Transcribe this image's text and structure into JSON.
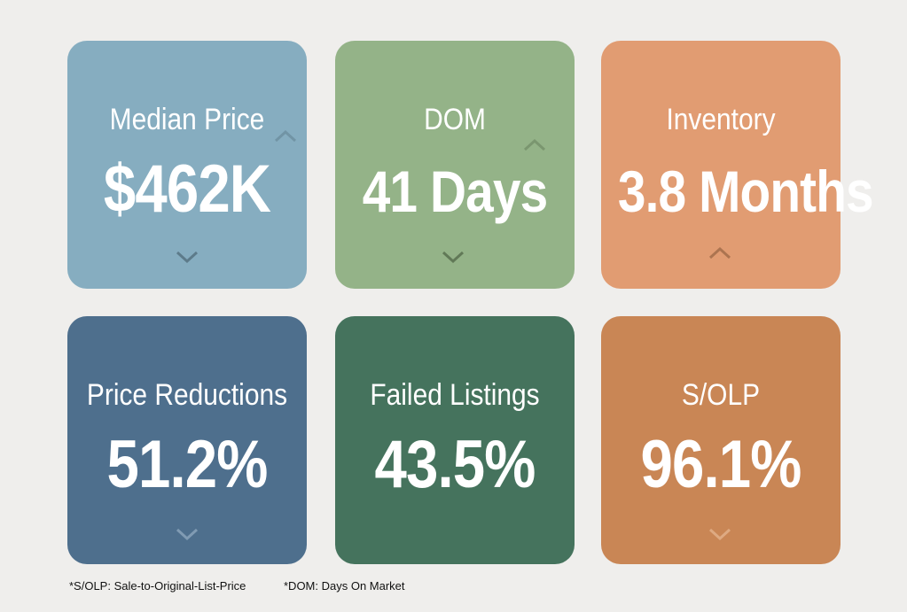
{
  "colors": {
    "background": "#efeeec",
    "median_price": "#86adc0",
    "dom": "#94b388",
    "inventory": "#e19c72",
    "price_reductions": "#4e6f8d",
    "failed_listings": "#45735d",
    "solp": "#c98655"
  },
  "cards": [
    {
      "label": "Median Price",
      "value": "$462K",
      "trend": "down",
      "icon": "chevron-down-icon"
    },
    {
      "label": "DOM",
      "value": "41 Days",
      "trend": "down",
      "icon": "chevron-down-icon"
    },
    {
      "label": "Inventory",
      "value": "3.8 Months",
      "trend": "up",
      "icon": "chevron-up-icon"
    },
    {
      "label": "Price Reductions",
      "value": "51.2%",
      "trend": "down",
      "icon": "chevron-down-icon"
    },
    {
      "label": "Failed Listings",
      "value": "43.5%",
      "trend": "none"
    },
    {
      "label": "S/OLP",
      "value": "96.1%",
      "trend": "down",
      "icon": "chevron-down-icon"
    }
  ],
  "footnotes": {
    "solp": "*S/OLP: Sale-to-Original-List-Price",
    "dom": "*DOM: Days On Market"
  }
}
